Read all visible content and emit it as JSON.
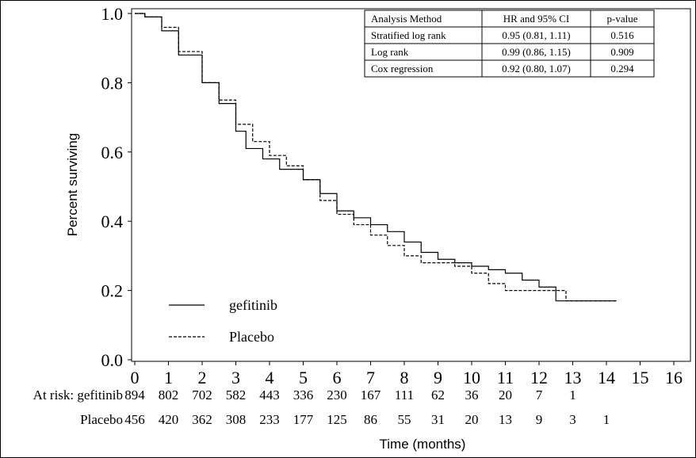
{
  "chart_data": {
    "type": "line",
    "ylabel": "Percent surviving",
    "xlabel": "Time (months)",
    "xlim": [
      0,
      16
    ],
    "ylim": [
      0,
      1.0
    ],
    "x_ticks": [
      "0",
      "1",
      "2",
      "3",
      "4",
      "5",
      "6",
      "7",
      "8",
      "9",
      "10",
      "11",
      "12",
      "13",
      "14",
      "15",
      "16"
    ],
    "y_ticks": [
      "0.0",
      "0.2",
      "0.4",
      "0.6",
      "0.8",
      "1.0"
    ],
    "legend": {
      "placement": "bottom-left",
      "entries": [
        {
          "label": "gefitinib",
          "style": "solid"
        },
        {
          "label": "Placebo",
          "style": "dashed"
        }
      ]
    },
    "series": [
      {
        "name": "gefitinib",
        "style": "solid",
        "points": [
          [
            0,
            1.0
          ],
          [
            0.3,
            0.99
          ],
          [
            0.8,
            0.95
          ],
          [
            1.3,
            0.88
          ],
          [
            2,
            0.8
          ],
          [
            2.5,
            0.74
          ],
          [
            3,
            0.66
          ],
          [
            3.3,
            0.61
          ],
          [
            3.8,
            0.58
          ],
          [
            4.3,
            0.55
          ],
          [
            5,
            0.52
          ],
          [
            5.5,
            0.48
          ],
          [
            6,
            0.43
          ],
          [
            6.5,
            0.41
          ],
          [
            7,
            0.39
          ],
          [
            7.5,
            0.37
          ],
          [
            8,
            0.34
          ],
          [
            8.5,
            0.31
          ],
          [
            9,
            0.29
          ],
          [
            9.5,
            0.28
          ],
          [
            10,
            0.27
          ],
          [
            10.5,
            0.26
          ],
          [
            11,
            0.25
          ],
          [
            11.5,
            0.23
          ],
          [
            12,
            0.21
          ],
          [
            12.5,
            0.17
          ],
          [
            14.3,
            0.17
          ]
        ]
      },
      {
        "name": "Placebo",
        "style": "dashed",
        "points": [
          [
            0,
            1.0
          ],
          [
            0.3,
            0.99
          ],
          [
            0.8,
            0.96
          ],
          [
            1.3,
            0.89
          ],
          [
            2,
            0.8
          ],
          [
            2.5,
            0.75
          ],
          [
            3,
            0.68
          ],
          [
            3.5,
            0.63
          ],
          [
            4,
            0.59
          ],
          [
            4.5,
            0.56
          ],
          [
            5,
            0.52
          ],
          [
            5.5,
            0.46
          ],
          [
            6,
            0.42
          ],
          [
            6.5,
            0.39
          ],
          [
            7,
            0.36
          ],
          [
            7.5,
            0.33
          ],
          [
            8,
            0.3
          ],
          [
            8.5,
            0.28
          ],
          [
            9,
            0.28
          ],
          [
            9.5,
            0.27
          ],
          [
            10,
            0.25
          ],
          [
            10.5,
            0.22
          ],
          [
            11,
            0.2
          ],
          [
            11.5,
            0.2
          ],
          [
            12.5,
            0.2
          ],
          [
            12.8,
            0.17
          ],
          [
            14.3,
            0.17
          ]
        ]
      }
    ],
    "stats_table": {
      "headers": [
        "Analysis Method",
        "HR and 95% CI",
        "p-value"
      ],
      "rows": [
        [
          "Stratified log rank",
          "0.95 (0.81, 1.11)",
          "0.516"
        ],
        [
          "Log rank",
          "0.99 (0.86, 1.15)",
          "0.909"
        ],
        [
          "Cox regression",
          "0.92 (0.80, 1.07)",
          "0.294"
        ]
      ]
    },
    "at_risk": {
      "header": "At risk:",
      "rows": [
        {
          "name": "gefitinib",
          "values": [
            "894",
            "802",
            "702",
            "582",
            "443",
            "336",
            "230",
            "167",
            "111",
            "62",
            "36",
            "20",
            "7",
            "1"
          ]
        },
        {
          "name": "Placebo",
          "values": [
            "456",
            "420",
            "362",
            "308",
            "233",
            "177",
            "125",
            "86",
            "55",
            "31",
            "20",
            "13",
            "9",
            "3",
            "1"
          ]
        }
      ]
    }
  }
}
